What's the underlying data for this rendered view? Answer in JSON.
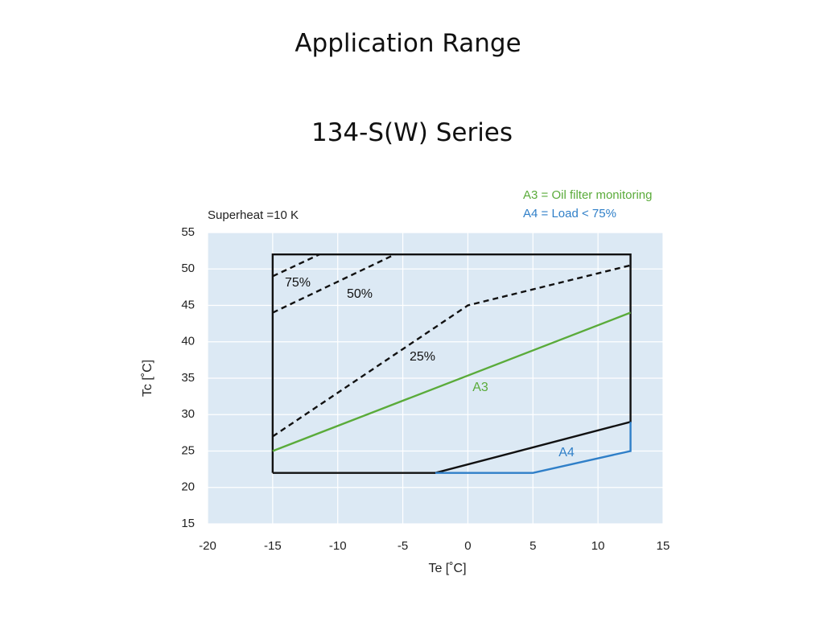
{
  "title": "Application Range",
  "subtitle": "134-S(W) Series",
  "chart_data": {
    "type": "line",
    "annotation": "Superheat =10 K",
    "notes": [
      {
        "text": "A3 = Oil filter monitoring",
        "color": "#5aab3a"
      },
      {
        "text": "A4 = Load  <  75%",
        "color": "#2f7fc8"
      }
    ],
    "x_label": "Te [˚C]",
    "y_label": "Tc [˚C]",
    "xlim": [
      -20,
      15
    ],
    "ylim": [
      15,
      55
    ],
    "xticks": [
      -20,
      -15,
      -10,
      -5,
      0,
      5,
      10,
      15
    ],
    "yticks": [
      15,
      20,
      25,
      30,
      35,
      40,
      45,
      50,
      55
    ],
    "grid": true,
    "series": [
      {
        "color": "#111111",
        "dashed": false,
        "x": [
          -15,
          -15,
          12.5,
          12.5,
          -2.5,
          -15
        ],
        "values": [
          22,
          52,
          52,
          29,
          22,
          22
        ]
      },
      {
        "name": "A4",
        "color": "#2f7fc8",
        "dashed": false,
        "x": [
          -2.5,
          5,
          12.5,
          12.5
        ],
        "values": [
          22,
          22,
          25,
          29
        ]
      },
      {
        "name": "A3",
        "color": "#5aab3a",
        "dashed": false,
        "x": [
          -15,
          12.5
        ],
        "values": [
          25,
          44
        ]
      },
      {
        "name": "25%",
        "color": "#111111",
        "dashed": true,
        "x": [
          -15,
          0,
          12.5
        ],
        "values": [
          27,
          45,
          50.5
        ]
      },
      {
        "name": "50%",
        "color": "#111111",
        "dashed": true,
        "x": [
          -15,
          -5.6
        ],
        "values": [
          44,
          52
        ]
      },
      {
        "name": "75%",
        "color": "#111111",
        "dashed": true,
        "x": [
          -15,
          -11.4
        ],
        "values": [
          49,
          52
        ]
      }
    ]
  }
}
